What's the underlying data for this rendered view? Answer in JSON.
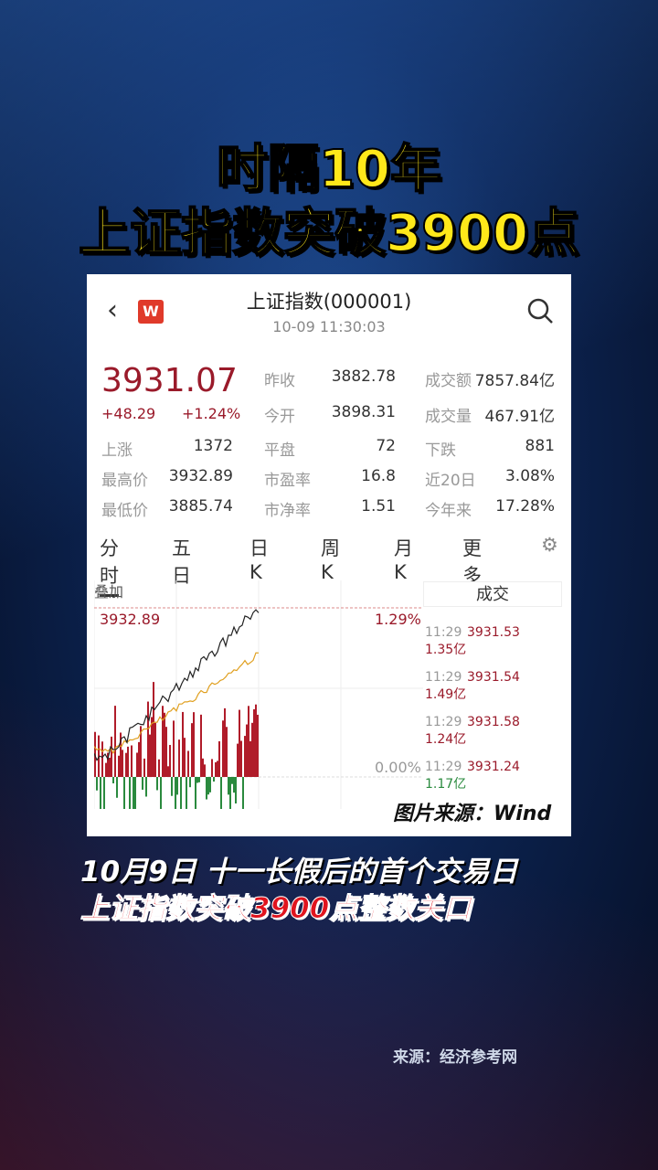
{
  "headline": {
    "line1": "时隔10年",
    "line2": "上证指数突破3900点"
  },
  "app": {
    "back_icon": "chevron-left-icon",
    "logo_text": "W",
    "search_icon": "search-icon",
    "title": "上证指数(000001)",
    "timestamp": "10-09 11:30:03",
    "price": "3931.07",
    "change": "+48.29",
    "change_pct": "+1.24%",
    "stats": [
      {
        "label": "昨收",
        "value": "3882.78"
      },
      {
        "label": "成交额",
        "value": "7857.84亿"
      },
      {
        "label": "今开",
        "value": "3898.31"
      },
      {
        "label": "成交量",
        "value": "467.91亿"
      },
      {
        "label": "上涨",
        "value": "1372"
      },
      {
        "label": "平盘",
        "value": "72"
      },
      {
        "label": "下跌",
        "value": "881"
      },
      {
        "label": "最高价",
        "value": "3932.89"
      },
      {
        "label": "市盈率",
        "value": "16.8"
      },
      {
        "label": "近20日",
        "value": "3.08%"
      },
      {
        "label": "最低价",
        "value": "3885.74"
      },
      {
        "label": "市净率",
        "value": "1.51"
      },
      {
        "label": "今年来",
        "value": "17.28%"
      }
    ],
    "tabs": [
      "分时",
      "五日",
      "日K",
      "周K",
      "月K",
      "更多"
    ],
    "active_tab": "分时",
    "overlay_label": "叠加",
    "chart": {
      "high_label": "3932.89",
      "top_pct": "1.29%",
      "zero_pct": "0.00%",
      "up_color": "#b01c2a",
      "down_color": "#2a8a3e",
      "price_line_color": "#222222",
      "avg_line_color": "#e0a020"
    },
    "trades_header": "成交",
    "trades": [
      {
        "time": "11:29",
        "price": "3931.53",
        "volume": "1.35亿"
      },
      {
        "time": "11:29",
        "price": "3931.54",
        "volume": "1.49亿"
      },
      {
        "time": "11:29",
        "price": "3931.58",
        "volume": "1.24亿"
      },
      {
        "time": "11:29",
        "price": "3931.24",
        "volume": "1.17亿"
      }
    ],
    "watermark": "图片来源：Wind"
  },
  "caption": {
    "line1": "10月9日  十一长假后的首个交易日",
    "line2": "上证指数突破3900点整数关口"
  },
  "source": "来源：经济参考网"
}
